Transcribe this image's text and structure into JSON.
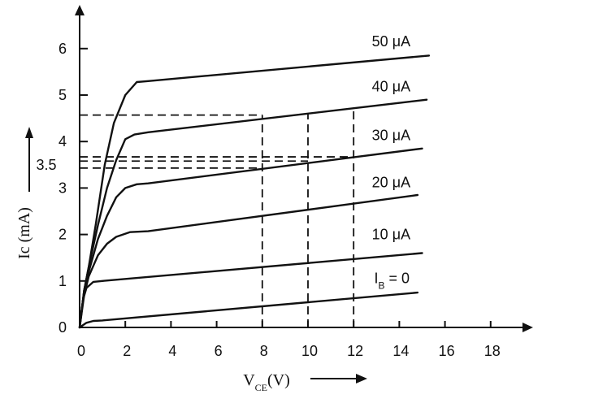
{
  "chart_data": {
    "type": "line",
    "title": "",
    "xlabel": {
      "main": "V",
      "sub": "CE",
      "unit": "(V)"
    },
    "ylabel": "Ic (mA)",
    "xlim": [
      0,
      20
    ],
    "ylim": [
      0,
      7
    ],
    "x_ticks": [
      "0",
      "2",
      "4",
      "6",
      "8",
      "10",
      "12",
      "14",
      "16",
      "18"
    ],
    "y_ticks": [
      "0",
      "1",
      "2",
      "3",
      "4",
      "5",
      "6"
    ],
    "y_extra_label": {
      "text": "3.5",
      "value": 3.5
    },
    "grid": false,
    "legend": "inline labels",
    "series": [
      {
        "name": "50 μA",
        "points": [
          [
            0,
            0
          ],
          [
            0.2,
            0.8
          ],
          [
            0.4,
            1.3
          ],
          [
            0.7,
            2.2
          ],
          [
            1.1,
            3.5
          ],
          [
            1.5,
            4.4
          ],
          [
            2.0,
            5.0
          ],
          [
            2.5,
            5.28
          ],
          [
            3.0,
            5.3
          ],
          [
            15.3,
            5.85
          ]
        ]
      },
      {
        "name": "40 μA",
        "points": [
          [
            0,
            0
          ],
          [
            0.2,
            0.8
          ],
          [
            0.4,
            1.3
          ],
          [
            0.8,
            2.2
          ],
          [
            1.2,
            3.0
          ],
          [
            1.6,
            3.6
          ],
          [
            2.0,
            4.05
          ],
          [
            2.4,
            4.15
          ],
          [
            3.0,
            4.2
          ],
          [
            15.2,
            4.9
          ]
        ]
      },
      {
        "name": "30 μA",
        "points": [
          [
            0,
            0
          ],
          [
            0.2,
            0.8
          ],
          [
            0.4,
            1.2
          ],
          [
            0.8,
            1.9
          ],
          [
            1.2,
            2.4
          ],
          [
            1.6,
            2.8
          ],
          [
            2.0,
            3.0
          ],
          [
            2.5,
            3.08
          ],
          [
            3.0,
            3.1
          ],
          [
            15.0,
            3.85
          ]
        ]
      },
      {
        "name": "20 μA",
        "points": [
          [
            0,
            0
          ],
          [
            0.2,
            0.7
          ],
          [
            0.4,
            1.1
          ],
          [
            0.8,
            1.55
          ],
          [
            1.2,
            1.8
          ],
          [
            1.6,
            1.95
          ],
          [
            2.2,
            2.05
          ],
          [
            3.0,
            2.07
          ],
          [
            14.8,
            2.85
          ]
        ]
      },
      {
        "name": "10 μA",
        "points": [
          [
            0,
            0
          ],
          [
            0.15,
            0.6
          ],
          [
            0.3,
            0.85
          ],
          [
            0.6,
            0.98
          ],
          [
            1.0,
            1.0
          ],
          [
            15.0,
            1.6
          ]
        ]
      },
      {
        "name": "I_B = 0",
        "points": [
          [
            0,
            0
          ],
          [
            0.3,
            0.1
          ],
          [
            0.6,
            0.14
          ],
          [
            1.0,
            0.15
          ],
          [
            14.8,
            0.75
          ]
        ]
      }
    ],
    "series_labels": [
      {
        "text": "50 μA",
        "x": 12.8,
        "y": 6.05
      },
      {
        "text": "40 μA",
        "x": 12.8,
        "y": 5.08
      },
      {
        "text": "30 μA",
        "x": 12.8,
        "y": 4.03
      },
      {
        "text": "20 μA",
        "x": 12.8,
        "y": 3.02
      },
      {
        "text": "10 μA",
        "x": 12.8,
        "y": 1.9
      },
      {
        "main": "I",
        "sub": "B",
        "rest": " = 0",
        "x": 12.9,
        "y": 0.95
      }
    ],
    "reference_lines": [
      {
        "type": "horizontal",
        "y": 4.57,
        "x_from": 0,
        "x_to": 8
      },
      {
        "type": "horizontal",
        "y": 3.67,
        "x_from": 0,
        "x_to": 12
      },
      {
        "type": "horizontal",
        "y": 3.58,
        "x_from": 0,
        "x_to": 10
      },
      {
        "type": "horizontal",
        "y": 3.43,
        "x_from": 0,
        "x_to": 8
      },
      {
        "type": "vertical",
        "x": 8,
        "y_from": 0,
        "y_to": 4.57
      },
      {
        "type": "vertical",
        "x": 10,
        "y_from": 0,
        "y_to": 4.6
      },
      {
        "type": "vertical",
        "x": 12,
        "y_from": 0,
        "y_to": 4.72
      }
    ]
  }
}
